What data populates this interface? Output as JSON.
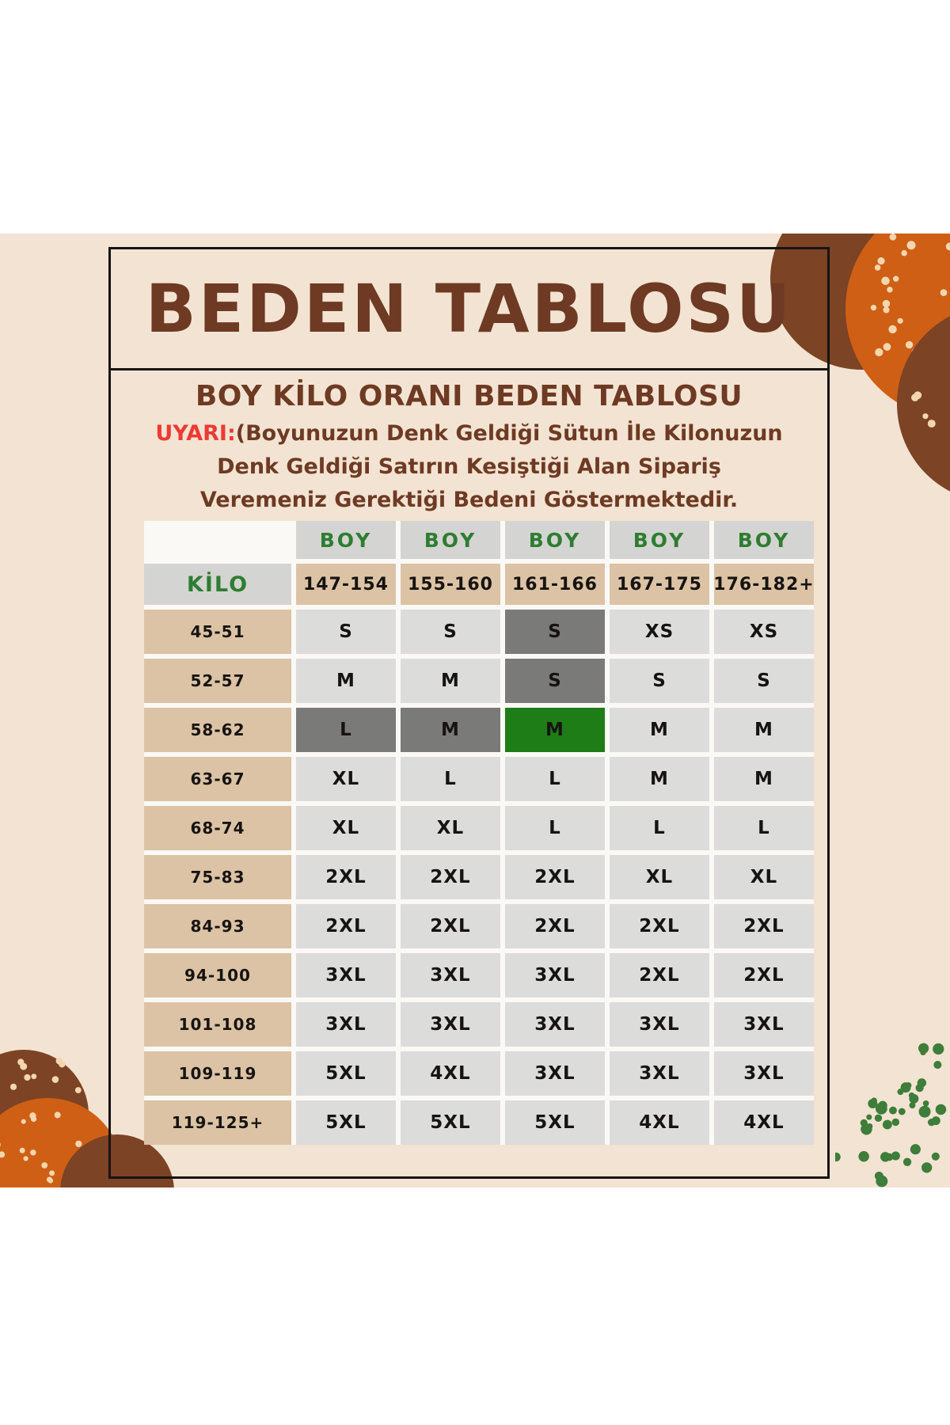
{
  "page": {
    "title": "BEDEN TABLOSU",
    "subtitle": "BOY KİLO ORANI BEDEN TABLOSU",
    "warning": {
      "label": "UYARI:",
      "lines": [
        "(Boyunuzun Denk Geldiği Sütun İle Kilonuzun",
        "Denk Geldiği Satırın Kesiştiği Alan Sipariş",
        "Veremeniz Gerektiği Bedeni Göstermektedir."
      ]
    }
  },
  "size_table": {
    "column_header": "BOY",
    "row_header": "KİLO",
    "height_ranges": [
      "147-154",
      "155-160",
      "161-166",
      "167-175",
      "176-182+"
    ],
    "weight_rows": [
      {
        "weight": "45-51",
        "sizes": [
          "S",
          "S",
          "S",
          "XS",
          "XS"
        ]
      },
      {
        "weight": "52-57",
        "sizes": [
          "M",
          "M",
          "S",
          "S",
          "S"
        ]
      },
      {
        "weight": "58-62",
        "sizes": [
          "L",
          "M",
          "M",
          "M",
          "M"
        ]
      },
      {
        "weight": "63-67",
        "sizes": [
          "XL",
          "L",
          "L",
          "M",
          "M"
        ]
      },
      {
        "weight": "68-74",
        "sizes": [
          "XL",
          "XL",
          "L",
          "L",
          "L"
        ]
      },
      {
        "weight": "75-83",
        "sizes": [
          "2XL",
          "2XL",
          "2XL",
          "XL",
          "XL"
        ]
      },
      {
        "weight": "84-93",
        "sizes": [
          "2XL",
          "2XL",
          "2XL",
          "2XL",
          "2XL"
        ]
      },
      {
        "weight": "94-100",
        "sizes": [
          "3XL",
          "3XL",
          "3XL",
          "2XL",
          "2XL"
        ]
      },
      {
        "weight": "101-108",
        "sizes": [
          "3XL",
          "3XL",
          "3XL",
          "3XL",
          "3XL"
        ]
      },
      {
        "weight": "109-119",
        "sizes": [
          "5XL",
          "4XL",
          "3XL",
          "3XL",
          "3XL"
        ]
      },
      {
        "weight": "119-125+",
        "sizes": [
          "5XL",
          "5XL",
          "5XL",
          "4XL",
          "4XL"
        ]
      }
    ],
    "highlights": [
      {
        "row": 0,
        "col": 2,
        "style": "grey"
      },
      {
        "row": 1,
        "col": 2,
        "style": "grey"
      },
      {
        "row": 2,
        "col": 0,
        "style": "grey"
      },
      {
        "row": 2,
        "col": 1,
        "style": "grey"
      },
      {
        "row": 2,
        "col": 2,
        "style": "green"
      }
    ]
  },
  "palette": {
    "beige": "#f3e3d2",
    "ink": "#161412",
    "brown-text": "#6e3a23",
    "red": "#ee3a33",
    "green-text": "#2e7d32",
    "tan": "#dcc3a5",
    "grey-head": "#d4d4d2",
    "grey-cell": "#dcdcda",
    "dark-grey": "#7a7a78",
    "green-bg": "#1e7d16",
    "gapbg": "#faf9f6",
    "orange": "#cf5f15",
    "brown-circle": "#7c4325",
    "cream-dot": "#f3d6ae",
    "green-dot": "#3e7d3a"
  }
}
